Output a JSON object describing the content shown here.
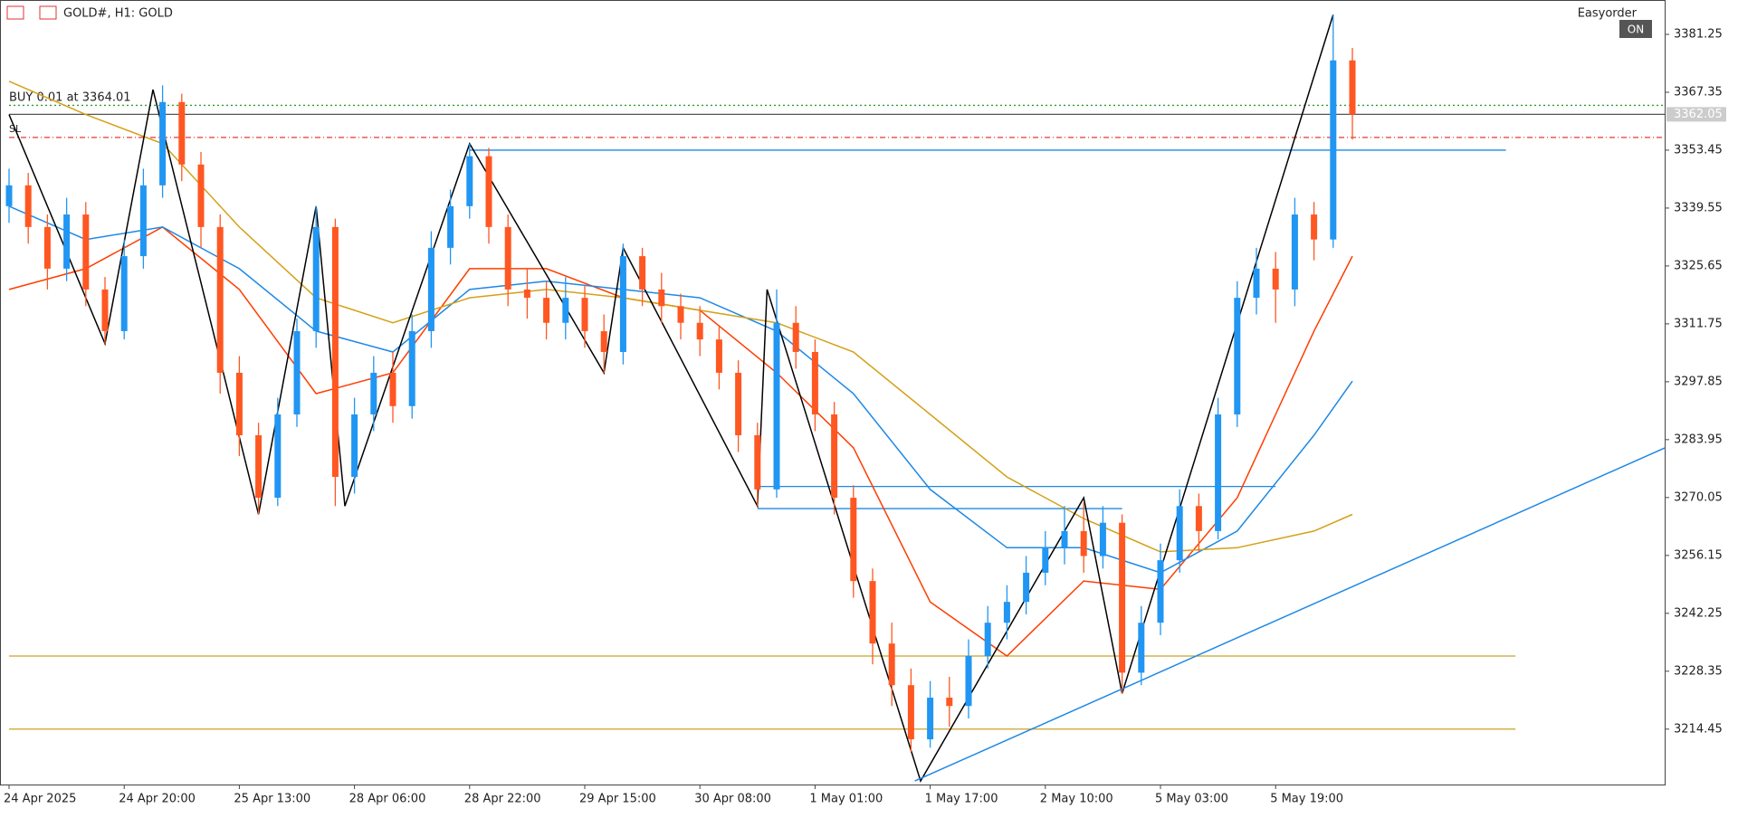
{
  "chart_data": {
    "type": "candlestick",
    "title": "GOLD#, H1:  GOLD",
    "categories": [
      "24 Apr 2025",
      null,
      null,
      null,
      null,
      null,
      "24 Apr 20:00",
      null,
      null,
      null,
      null,
      null,
      "25 Apr 13:00",
      null,
      null,
      null,
      null,
      null,
      "28 Apr 06:00",
      null,
      null,
      null,
      null,
      null,
      "28 Apr 22:00",
      null,
      null,
      null,
      null,
      null,
      "29 Apr 15:00",
      null,
      null,
      null,
      null,
      null,
      "30 Apr 08:00",
      null,
      null,
      null,
      null,
      null,
      "1 May 01:00",
      null,
      null,
      null,
      null,
      null,
      "1 May 17:00",
      null,
      null,
      null,
      null,
      null,
      "2 May 10:00",
      null,
      null,
      null,
      null,
      null,
      "5 May 03:00",
      null,
      null,
      null,
      null,
      null,
      "5 May 19:00",
      null,
      null,
      null,
      null
    ],
    "open": [
      3340,
      3345,
      3335,
      3325,
      3338,
      3320,
      3310,
      3328,
      3345,
      3365,
      3350,
      3335,
      3300,
      3285,
      3270,
      3290,
      3310,
      3335,
      3275,
      3290,
      3300,
      3292,
      3310,
      3330,
      3340,
      3352,
      3335,
      3320,
      3318,
      3312,
      3318,
      3310,
      3305,
      3328,
      3320,
      3316,
      3312,
      3308,
      3300,
      3285,
      3272,
      3312,
      3305,
      3290,
      3270,
      3250,
      3235,
      3225,
      3212,
      3222,
      3220,
      3232,
      3240,
      3245,
      3252,
      3258,
      3262,
      3256,
      3264,
      3228,
      3240,
      3255,
      3268,
      3262,
      3290,
      3318,
      3325,
      3320,
      3338,
      3332,
      3375
    ],
    "high": [
      3349,
      3348,
      3338,
      3342,
      3341,
      3323,
      3332,
      3349,
      3369,
      3367,
      3353,
      3338,
      3304,
      3288,
      3294,
      3313,
      3340,
      3337,
      3294,
      3304,
      3305,
      3314,
      3334,
      3344,
      3355,
      3354,
      3338,
      3325,
      3322,
      3323,
      3321,
      3314,
      3331,
      3330,
      3324,
      3319,
      3316,
      3311,
      3303,
      3288,
      3320,
      3316,
      3308,
      3293,
      3273,
      3253,
      3240,
      3229,
      3226,
      3227,
      3236,
      3244,
      3249,
      3256,
      3262,
      3268,
      3269,
      3268,
      3266,
      3244,
      3259,
      3272,
      3271,
      3294,
      3322,
      3330,
      3329,
      3342,
      3341,
      3386,
      3378
    ],
    "low": [
      3336,
      3331,
      3320,
      3322,
      3316,
      3307,
      3308,
      3325,
      3342,
      3346,
      3330,
      3295,
      3280,
      3266,
      3268,
      3287,
      3306,
      3268,
      3271,
      3286,
      3288,
      3289,
      3306,
      3326,
      3337,
      3331,
      3316,
      3313,
      3308,
      3308,
      3306,
      3300,
      3302,
      3316,
      3312,
      3308,
      3304,
      3296,
      3281,
      3268,
      3270,
      3301,
      3286,
      3266,
      3246,
      3230,
      3220,
      3209,
      3210,
      3215,
      3217,
      3229,
      3236,
      3242,
      3249,
      3254,
      3252,
      3253,
      3223,
      3225,
      3237,
      3252,
      3257,
      3260,
      3287,
      3314,
      3312,
      3316,
      3327,
      3330,
      3356
    ],
    "close": [
      3345,
      3335,
      3325,
      3338,
      3320,
      3310,
      3328,
      3345,
      3365,
      3350,
      3335,
      3300,
      3285,
      3270,
      3290,
      3310,
      3335,
      3275,
      3290,
      3300,
      3292,
      3310,
      3330,
      3340,
      3352,
      3335,
      3320,
      3318,
      3312,
      3318,
      3310,
      3305,
      3328,
      3320,
      3316,
      3312,
      3308,
      3300,
      3285,
      3272,
      3312,
      3305,
      3290,
      3270,
      3250,
      3235,
      3225,
      3212,
      3222,
      3220,
      3232,
      3240,
      3245,
      3252,
      3258,
      3262,
      3256,
      3264,
      3228,
      3240,
      3255,
      3268,
      3262,
      3290,
      3318,
      3325,
      3320,
      3338,
      3332,
      3375,
      3362
    ],
    "up_color": "#2196f3",
    "down_color": "#ff5722",
    "ylim": [
      3201.15,
      3389.5
    ],
    "yticks": [
      3214.45,
      3228.35,
      3242.25,
      3256.15,
      3270.05,
      3283.95,
      3297.85,
      3311.75,
      3325.65,
      3339.55,
      3353.45,
      3367.35,
      3381.25
    ],
    "overlays": [
      {
        "color": "#ff3d00",
        "x": [
          0,
          4,
          8,
          12,
          16,
          20,
          24,
          28,
          32,
          36,
          40,
          44,
          48,
          52,
          56,
          60,
          64,
          68,
          70
        ],
        "values": [
          3320,
          3325,
          3335,
          3320,
          3295,
          3300,
          3325,
          3325,
          3318,
          3315,
          3300,
          3282,
          3245,
          3232,
          3250,
          3248,
          3270,
          3310,
          3328
        ]
      },
      {
        "color": "#1e88e5",
        "x": [
          0,
          4,
          8,
          12,
          16,
          20,
          24,
          28,
          32,
          36,
          40,
          44,
          48,
          52,
          56,
          60,
          64,
          68,
          70
        ],
        "values": [
          3340,
          3332,
          3335,
          3325,
          3310,
          3305,
          3320,
          3322,
          3320,
          3318,
          3310,
          3295,
          3272,
          3258,
          3258,
          3252,
          3262,
          3285,
          3298
        ]
      },
      {
        "color": "#d4a017",
        "x": [
          0,
          4,
          8,
          12,
          16,
          20,
          24,
          28,
          32,
          36,
          40,
          44,
          48,
          52,
          56,
          60,
          64,
          68,
          70
        ],
        "values": [
          3370,
          3362,
          3355,
          3335,
          3318,
          3312,
          3318,
          3320,
          3318,
          3315,
          3312,
          3305,
          3290,
          3275,
          3265,
          3257,
          3258,
          3262,
          3266
        ]
      },
      {
        "color": "#000000",
        "x": [
          0,
          5,
          7.5,
          13,
          16,
          17.5,
          24,
          31,
          32,
          39,
          39.5,
          47.5,
          56,
          58,
          69
        ],
        "values": [
          3362,
          3307,
          3368,
          3266,
          3340,
          3268,
          3355,
          3300,
          3330,
          3268,
          3320,
          3202,
          3270,
          3223,
          3386
        ]
      },
      {
        "color": "#1e88e5",
        "x": [
          47.2,
          86.3
        ],
        "values": [
          3202,
          3282
        ]
      }
    ],
    "levels": [
      {
        "value": 3364.2,
        "color": "#2e9e2e",
        "dash": "2,3",
        "from": 0,
        "to": 88
      },
      {
        "value": 3362.05,
        "color": "#555555",
        "dash": "none",
        "from": 0,
        "to": 88
      },
      {
        "value": 3356.5,
        "color": "#e53935",
        "dash": "6,3,1,3",
        "from": 0,
        "to": 88
      },
      {
        "value": 3353.45,
        "color": "#1e88e5",
        "dash": "none",
        "from": 24,
        "to": 78
      },
      {
        "value": 3272.7,
        "color": "#1e88e5",
        "dash": "none",
        "from": 39,
        "to": 66
      },
      {
        "value": 3267.4,
        "color": "#1e88e5",
        "dash": "none",
        "from": 39,
        "to": 58
      },
      {
        "value": 3232.0,
        "color": "#c9a227",
        "dash": "none",
        "from": 0,
        "to": 78.5
      },
      {
        "value": 3214.45,
        "color": "#c9a227",
        "dash": "none",
        "from": 0,
        "to": 78.5
      }
    ],
    "annotations": {
      "order": "BUY 0.01 at 3364.01",
      "sl": "SL",
      "expert": "Easyorder",
      "status": "ON"
    },
    "price_label": 3362.05
  }
}
